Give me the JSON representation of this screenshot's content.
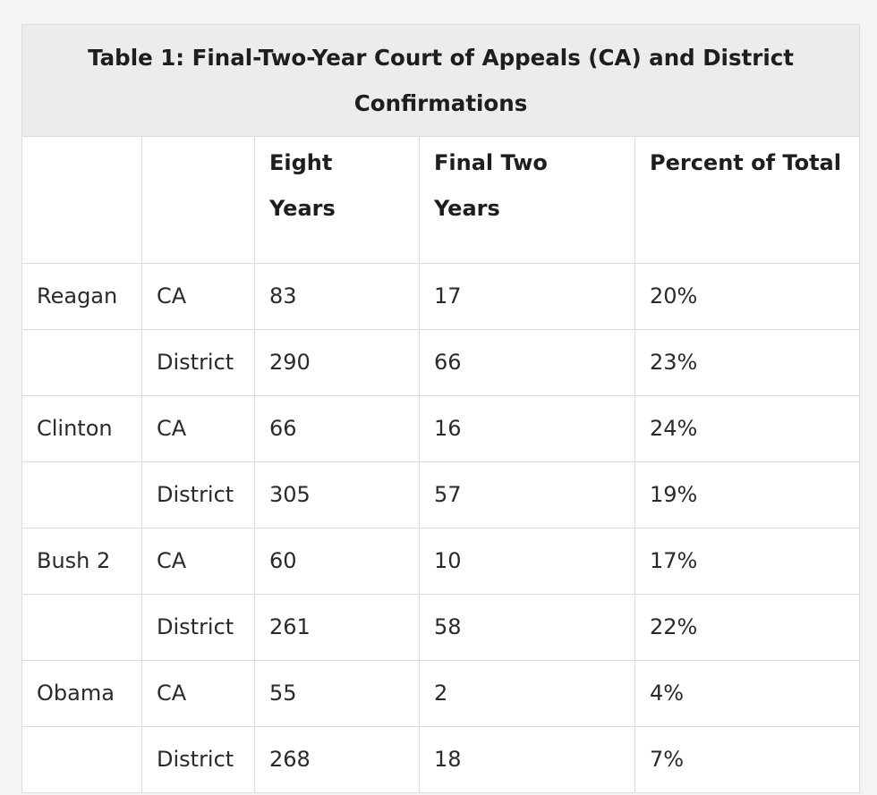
{
  "table": {
    "caption": "Table 1: Final-Two-Year Court of Appeals (CA) and District Confirmations",
    "headers": [
      "",
      "",
      "Eight Years",
      "Final Two Years",
      "Percent of Total"
    ],
    "rows": [
      {
        "president": "Reagan",
        "court": "CA",
        "eight_years": "83",
        "final_two_years": "17",
        "percent": "20%"
      },
      {
        "president": "",
        "court": "District",
        "eight_years": "290",
        "final_two_years": "66",
        "percent": "23%"
      },
      {
        "president": "Clinton",
        "court": "CA",
        "eight_years": "66",
        "final_two_years": "16",
        "percent": "24%"
      },
      {
        "president": "",
        "court": "District",
        "eight_years": "305",
        "final_two_years": "57",
        "percent": "19%"
      },
      {
        "president": "Bush 2",
        "court": "CA",
        "eight_years": "60",
        "final_two_years": "10",
        "percent": "17%"
      },
      {
        "president": "",
        "court": "District",
        "eight_years": "261",
        "final_two_years": "58",
        "percent": "22%"
      },
      {
        "president": "Obama",
        "court": "CA",
        "eight_years": "55",
        "final_two_years": "2",
        "percent": "4%"
      },
      {
        "president": "",
        "court": "District",
        "eight_years": "268",
        "final_two_years": "18",
        "percent": "7%"
      }
    ]
  }
}
